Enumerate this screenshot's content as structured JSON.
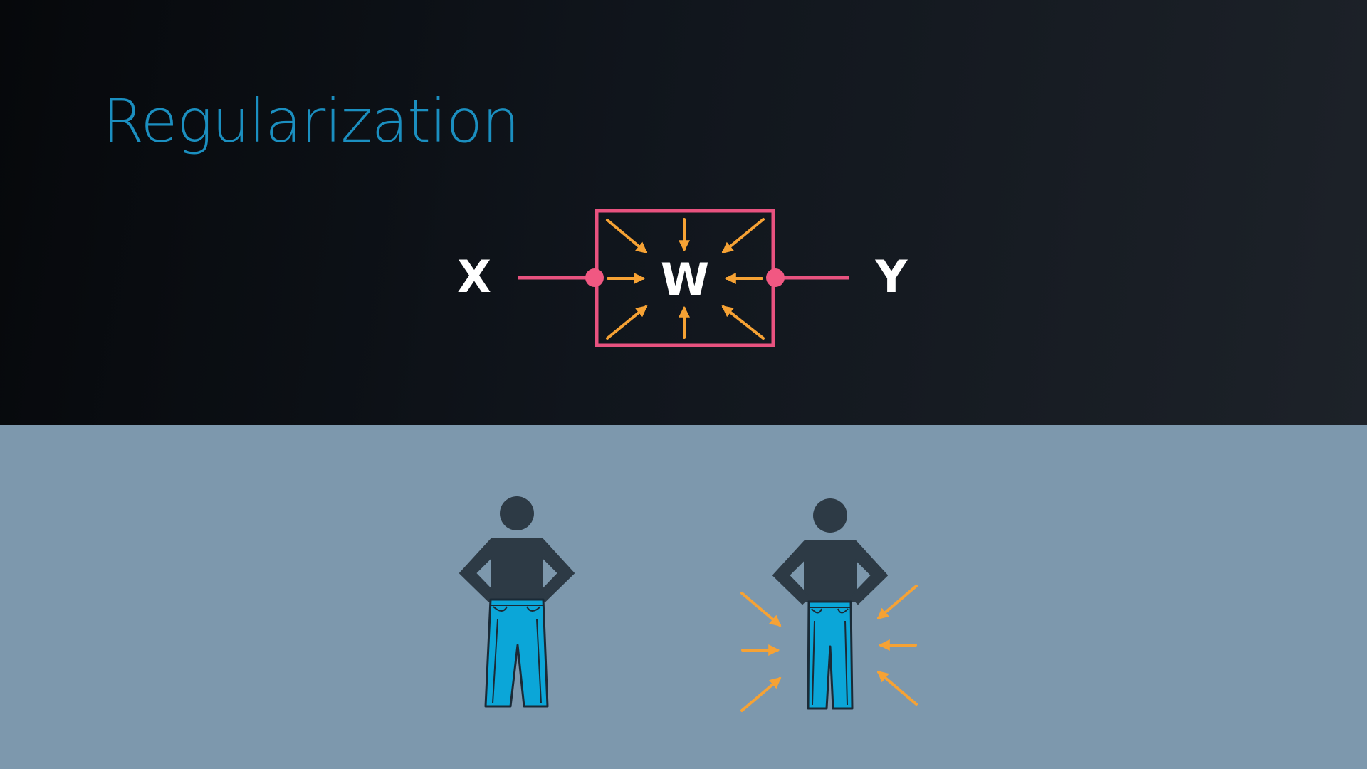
{
  "slide": {
    "title": "Regularization"
  },
  "diagram": {
    "input_label": "X",
    "weight_label": "W",
    "output_label": "Y"
  },
  "colors": {
    "title": "#1b8fc0",
    "box_stroke": "#e8527f",
    "node": "#f15882",
    "arrow": "#f6a234",
    "label": "#ffffff",
    "figure_body": "#2d3a45",
    "jeans": "#0ba6d8",
    "jeans_outline": "#1b2a36"
  },
  "icons": {
    "figure_loose": "person-loose-jeans-icon",
    "figure_tight": "person-tight-jeans-icon",
    "squeeze_arrows": "inward-arrows-icon"
  }
}
